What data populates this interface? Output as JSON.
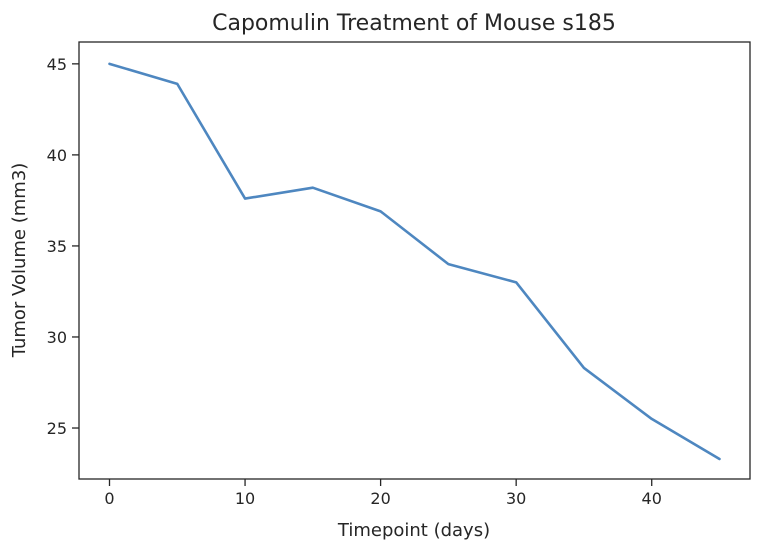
{
  "chart_data": {
    "type": "line",
    "title": "Capomulin Treatment of Mouse s185",
    "xlabel": "Timepoint (days)",
    "ylabel": "Tumor Volume (mm3)",
    "xlim": [
      -2.25,
      47.25
    ],
    "ylim": [
      22.2,
      46.2
    ],
    "xticks": [
      0,
      10,
      20,
      30,
      40
    ],
    "yticks": [
      25,
      30,
      35,
      40,
      45
    ],
    "grid": false,
    "series": [
      {
        "color": "#4e87c0",
        "x": [
          0,
          5,
          10,
          15,
          20,
          25,
          30,
          35,
          40,
          45
        ],
        "y": [
          45.0,
          43.9,
          37.6,
          38.2,
          36.9,
          34.0,
          33.0,
          28.3,
          25.5,
          23.3
        ]
      }
    ]
  }
}
